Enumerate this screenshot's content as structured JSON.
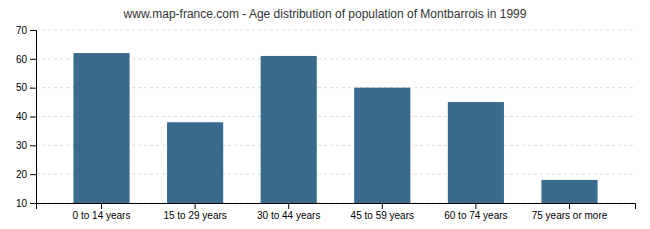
{
  "chart_data": {
    "type": "bar",
    "title": "www.map-france.com - Age distribution of population of Montbarrois in 1999",
    "categories": [
      "0 to 14 years",
      "15 to 29 years",
      "30 to 44 years",
      "45 to 59 years",
      "60 to 74 years",
      "75 years or more"
    ],
    "values": [
      62,
      38,
      61,
      50,
      45,
      18
    ],
    "color": "#3a6b8f",
    "ylim": [
      10,
      70
    ],
    "yticks": [
      10,
      20,
      30,
      40,
      50,
      60,
      70
    ],
    "grid": true
  }
}
